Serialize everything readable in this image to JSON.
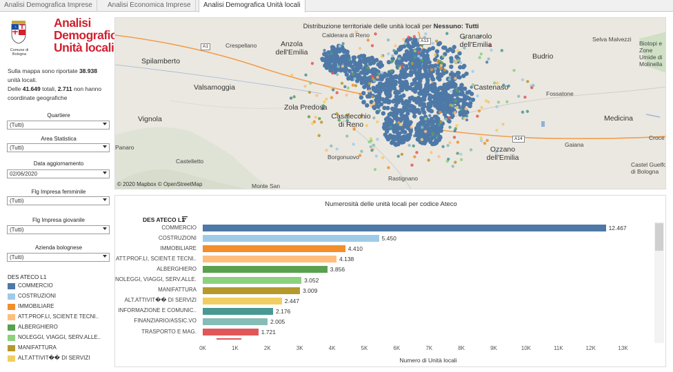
{
  "tabs": [
    {
      "label": "Analisi Demografica Imprese",
      "active": false
    },
    {
      "label": "Analisi Economica Imprese",
      "active": false
    },
    {
      "label": "Analisi Demografica Unità locali",
      "active": true
    }
  ],
  "logo": {
    "city": "Comune di Bologna",
    "title": [
      "Analisi",
      "Demografica",
      "Unità locali"
    ]
  },
  "info": {
    "line1_prefix": "Sulla mappa sono riportate ",
    "line1_bold": "38.938",
    "line1_suffix": " unità locali.",
    "line2_prefix": "Delle ",
    "line2_bold1": "41.649",
    "line2_mid": " totali, ",
    "line2_bold2": "2.711",
    "line2_suffix": " non hanno coordinate geografiche"
  },
  "filters": [
    {
      "label": "Quartiere",
      "value": "(Tutti)",
      "has_caret": true
    },
    {
      "label": "Area Statistica",
      "value": "(Tutti)",
      "has_caret": true
    },
    {
      "label": "Data aggiornamento",
      "value": "02/06/2020",
      "has_caret": true
    },
    {
      "label": "Flg Impresa femminile",
      "value": "(Tutti)",
      "has_caret": true
    },
    {
      "label": "Flg Impresa giovanile",
      "value": "(Tutti)",
      "has_caret": true
    },
    {
      "label": "Azienda bolognese",
      "value": "(Tutti)",
      "has_caret": true
    }
  ],
  "legend": {
    "title": "DES ATECO L1",
    "items": [
      {
        "label": "COMMERCIO",
        "color": "#4e79a7"
      },
      {
        "label": "COSTRUZIONI",
        "color": "#a0cbe8"
      },
      {
        "label": "IMMOBILIARE",
        "color": "#f28e2b"
      },
      {
        "label": "ATT.PROF.LI, SCIENT.E TECNI..",
        "color": "#ffbe7d"
      },
      {
        "label": "ALBERGHIERO",
        "color": "#59a14f"
      },
      {
        "label": "NOLEGGI, VIAGGI, SERV.ALLE..",
        "color": "#8cd17d"
      },
      {
        "label": "MANIFATTURA",
        "color": "#b6992d"
      },
      {
        "label": "ALT.ATTIVIT�� DI SERVIZI",
        "color": "#f1ce63"
      }
    ]
  },
  "map": {
    "title_prefix": "Distribuzione territoriale delle unità locali per ",
    "title_bold": "Nessuno: Tutti",
    "attribution": "© 2020 Mapbox  © OpenStreetMap",
    "places": [
      {
        "name": "Crespellano",
        "size": "small"
      },
      {
        "name": "Anzola dell'Emilia",
        "size": "large"
      },
      {
        "name": "Granarolo dell'Emilia",
        "size": "large"
      },
      {
        "name": "Budrio",
        "size": "large"
      },
      {
        "name": "Selva Malvezzi",
        "size": "small"
      },
      {
        "name": "Biotopi e Zone Umide di Molinella",
        "size": "small"
      },
      {
        "name": "Spilamberto",
        "size": "large"
      },
      {
        "name": "Valsamoggia",
        "size": "large"
      },
      {
        "name": "Castenaso",
        "size": "large"
      },
      {
        "name": "Fossatone",
        "size": "small"
      },
      {
        "name": "Zola Predosa",
        "size": "large"
      },
      {
        "name": "Casalecchio di Reno",
        "size": "large"
      },
      {
        "name": "Vignola",
        "size": "large"
      },
      {
        "name": "Medicina",
        "size": "large"
      },
      {
        "name": "Croce",
        "size": "small"
      },
      {
        "name": "Panaro",
        "size": "small"
      },
      {
        "name": "Ozzano dell'Emilia",
        "size": "large"
      },
      {
        "name": "Gaiana",
        "size": "small"
      },
      {
        "name": "Borgonuovo",
        "size": "small"
      },
      {
        "name": "Castelletto",
        "size": "small"
      },
      {
        "name": "Castel Guelfo di Bologna",
        "size": "small"
      },
      {
        "name": "Rastignano",
        "size": "small"
      },
      {
        "name": "Monte San",
        "size": "small"
      },
      {
        "name": "Calderara di Reno",
        "size": "small"
      }
    ],
    "road_labels": [
      "A1",
      "A13",
      "A14"
    ]
  },
  "chart_data": {
    "type": "bar",
    "title": "Numerosità delle unità locali per codice Ateco",
    "category_header": "DES ATECO L1",
    "xlabel": "Numero di Unità locali",
    "xlim": [
      0,
      13500
    ],
    "ticks": [
      "0K",
      "1K",
      "2K",
      "3K",
      "4K",
      "5K",
      "6K",
      "7K",
      "8K",
      "9K",
      "10K",
      "11K",
      "12K",
      "13K"
    ],
    "categories": [
      "COMMERCIO",
      "COSTRUZIONI",
      "IMMOBILIARE",
      "ATT.PROF.LI, SCIENT.E TECNI..",
      "ALBERGHIERO",
      "NOLEGGI, VIAGGI, SERV.ALLE..",
      "MANIFATTURA",
      "ALT.ATTIVIT�� DI SERVIZI",
      "INFORMAZIONE E COMUNIC..",
      "FINANZIARIO/ASSIC.VO",
      "TRASPORTO E MAG."
    ],
    "values": [
      12467,
      5450,
      4410,
      4138,
      3856,
      3052,
      3009,
      2447,
      2176,
      2005,
      1721
    ],
    "value_labels": [
      "12.467",
      "5.450",
      "4.410",
      "4.138",
      "3.856",
      "3.052",
      "3.009",
      "2.447",
      "2.176",
      "2.005",
      "1.721"
    ],
    "colors": [
      "#4e79a7",
      "#a0cbe8",
      "#f28e2b",
      "#ffbe7d",
      "#59a14f",
      "#8cd17d",
      "#b6992d",
      "#f1ce63",
      "#499894",
      "#86bcb6",
      "#e15759"
    ]
  }
}
